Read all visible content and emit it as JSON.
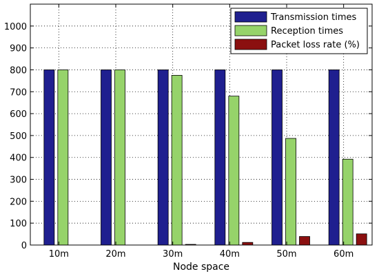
{
  "colors": {
    "transmission": "#1f1f8f",
    "reception": "#96d36a",
    "loss": "#8b1010",
    "axis": "#000000",
    "grid": "#000000",
    "background": "#ffffff"
  },
  "chart_data": {
    "type": "bar",
    "title": "",
    "xlabel": "Node space",
    "ylabel": "",
    "categories": [
      "10m",
      "20m",
      "30m",
      "40m",
      "50m",
      "60m"
    ],
    "ylim": [
      0,
      1100
    ],
    "yticks": [
      0,
      100,
      200,
      300,
      400,
      500,
      600,
      700,
      800,
      900,
      1000
    ],
    "grid": true,
    "legend_position": "top-right",
    "series": [
      {
        "name": "Transmission times",
        "color": "#1f1f8f",
        "values": [
          800,
          800,
          800,
          800,
          800,
          800
        ]
      },
      {
        "name": "Reception times",
        "color": "#96d36a",
        "values": [
          800,
          800,
          775,
          680,
          487,
          392
        ]
      },
      {
        "name": "Packet loss rate (%)",
        "color": "#8b1010",
        "values": [
          0,
          0,
          3,
          12,
          39,
          51
        ]
      }
    ]
  }
}
